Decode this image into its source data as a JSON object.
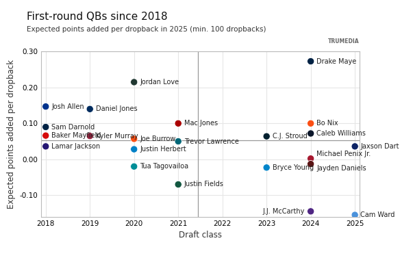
{
  "chart_data": {
    "type": "scatter",
    "title": "First-round QBs since 2018",
    "subtitle": "Expected points added per dropback in 2025 (min. 100 dropbacks)",
    "source": "TRUMEDIA",
    "x_label": "Draft class",
    "y_label": "Expected points added per dropback",
    "labels": [
      "Josh Allen",
      "Sam Darnold",
      "Baker Mayfield",
      "Lamar Jackson",
      "Daniel Jones",
      "Kyler Murray",
      "Jordan Love",
      "Joe Burrow",
      "Justin Herbert",
      "Tua Tagovailoa",
      "Mac Jones",
      "Trevor Lawrence",
      "Justin Fields",
      "C.J. Stroud",
      "Bryce Young",
      "Drake Maye",
      "Bo Nix",
      "Caleb Williams",
      "Michael Penix Jr.",
      "Jayden Daniels",
      "J.J. McCarthy",
      "Jaxson Dart",
      "Cam Ward"
    ],
    "x": [
      2018,
      2018,
      2018,
      2018,
      2019,
      2019,
      2020,
      2020,
      2020,
      2020,
      2021,
      2021,
      2021,
      2023,
      2023,
      2024,
      2024,
      2024,
      2024,
      2024,
      2024,
      2025,
      2025
    ],
    "values": [
      0.147,
      0.09,
      0.066,
      0.036,
      0.14,
      0.065,
      0.215,
      0.057,
      0.028,
      -0.02,
      0.1,
      0.05,
      -0.07,
      0.064,
      -0.023,
      0.273,
      0.1,
      0.072,
      0.002,
      -0.013,
      -0.145,
      0.036,
      -0.155
    ],
    "colors": [
      "#00338D",
      "#002244",
      "#D50A0A",
      "#241773",
      "#002C5F",
      "#97233F",
      "#203731",
      "#FB4F14",
      "#0080C6",
      "#008E97",
      "#AA0000",
      "#006778",
      "#125740",
      "#03202F",
      "#0085CA",
      "#002244",
      "#FB4F14",
      "#0B162A",
      "#A71930",
      "#5A1414",
      "#4F2683",
      "#0B2265",
      "#4B92DB"
    ],
    "reference_lines": {
      "x": 2021.45,
      "y": 0.053
    },
    "xlim": [
      2017.9,
      2025.1
    ],
    "xticks": [
      2018,
      2019,
      2020,
      2021,
      2022,
      2023,
      2024,
      2025
    ],
    "ylim": [
      -0.16,
      0.3
    ],
    "yticks": [
      {
        "value": -0.1,
        "label": "-0.10"
      },
      {
        "value": 0.0,
        "label": "0.00"
      },
      {
        "value": 0.1,
        "label": "0.10"
      },
      {
        "value": 0.2,
        "label": "0.20"
      },
      {
        "value": 0.3,
        "label": "0.30"
      }
    ],
    "grid": true
  }
}
